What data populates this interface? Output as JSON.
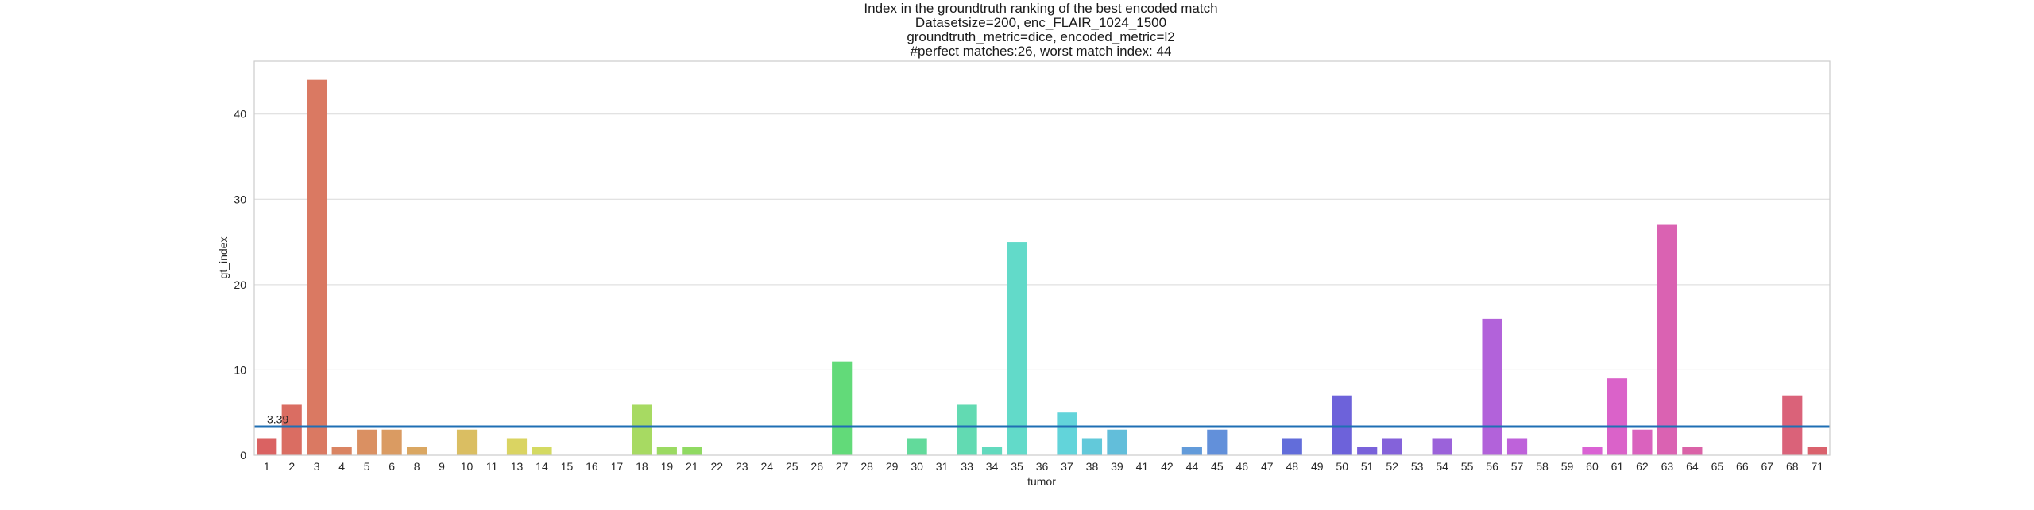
{
  "chart_data": {
    "type": "bar",
    "title_lines": [
      "Index in the groundtruth ranking of the best encoded match",
      "Datasetsize=200, enc_FLAIR_1024_1500",
      "groundtruth_metric=dice, encoded_metric=l2",
      "#perfect matches:26, worst match index: 44"
    ],
    "xlabel": "tumor",
    "ylabel": "gt_index",
    "ylim": [
      0,
      46.2
    ],
    "yticks": [
      0,
      10,
      20,
      30,
      40
    ],
    "grid": true,
    "categories": [
      "1",
      "2",
      "3",
      "4",
      "5",
      "6",
      "8",
      "9",
      "10",
      "11",
      "13",
      "14",
      "15",
      "16",
      "17",
      "18",
      "19",
      "21",
      "22",
      "23",
      "24",
      "25",
      "26",
      "27",
      "28",
      "29",
      "30",
      "31",
      "33",
      "34",
      "35",
      "36",
      "37",
      "38",
      "39",
      "41",
      "42",
      "44",
      "45",
      "46",
      "47",
      "48",
      "49",
      "50",
      "51",
      "52",
      "53",
      "54",
      "55",
      "56",
      "57",
      "58",
      "59",
      "60",
      "61",
      "62",
      "63",
      "64",
      "65",
      "66",
      "67",
      "68",
      "71"
    ],
    "values": [
      2,
      6,
      44,
      1,
      3,
      3,
      1,
      0,
      3,
      0,
      2,
      1,
      0,
      0,
      0,
      6,
      1,
      1,
      0,
      0,
      0,
      0,
      0,
      11,
      0,
      0,
      2,
      0,
      6,
      1,
      25,
      0,
      5,
      2,
      3,
      0,
      0,
      1,
      3,
      0,
      0,
      2,
      0,
      7,
      1,
      2,
      0,
      2,
      0,
      16,
      2,
      0,
      0,
      1,
      9,
      3,
      27,
      1,
      0,
      0,
      0,
      7,
      1
    ],
    "reference_line": {
      "value": 3.39,
      "label": "3.39",
      "color": "#1f6fb4"
    },
    "palette": "seaborn-husl"
  }
}
